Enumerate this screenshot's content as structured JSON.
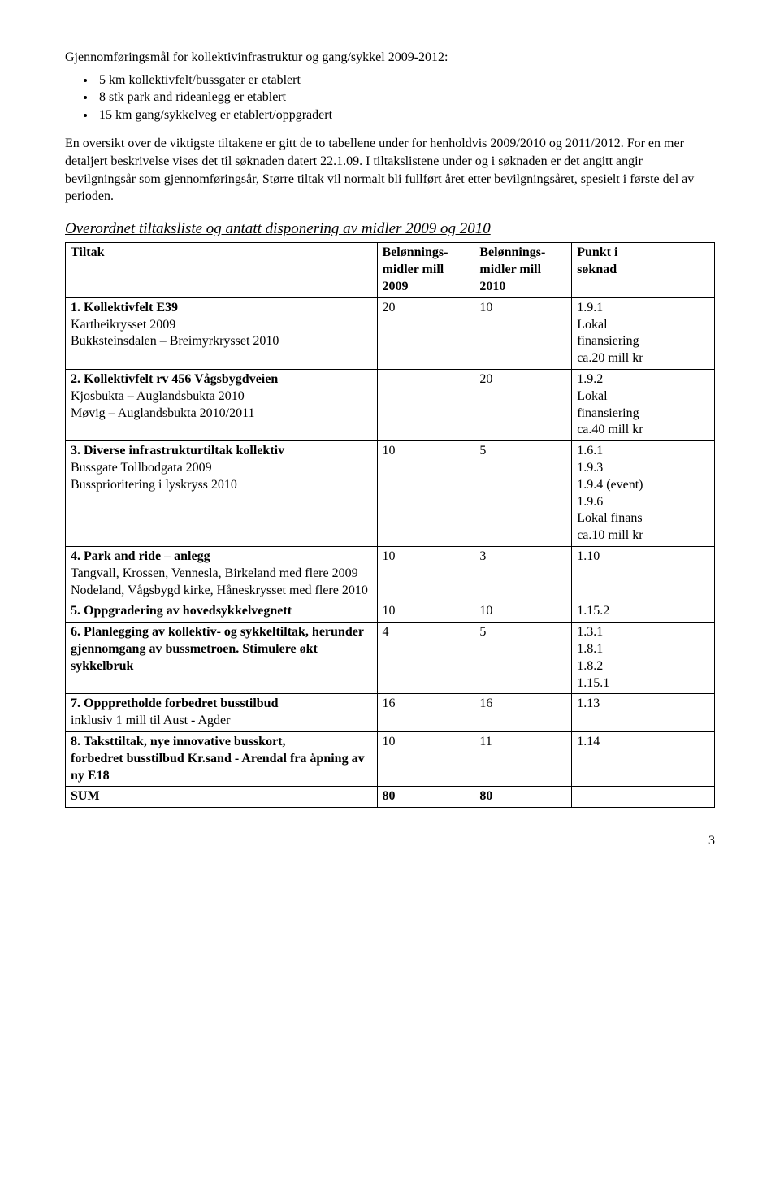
{
  "intro": {
    "line1": "Gjennomføringsmål for kollektivinfrastruktur og gang/sykkel 2009-2012:",
    "bullets": [
      "5 km kollektivfelt/bussgater er etablert",
      "8 stk park and rideanlegg er etablert",
      "15 km gang/sykkelveg er etablert/oppgradert"
    ],
    "para2": "En oversikt over de viktigste tiltakene er gitt de to tabellene under for henholdvis 2009/2010 og 2011/2012. For en mer detaljert beskrivelse vises det til søknaden datert 22.1.09. I tiltakslistene under og i søknaden er det angitt angir bevilgningsår som gjennomføringsår, Større tiltak vil normalt bli fullført året etter bevilgningsåret, spesielt i første del av perioden."
  },
  "tableHeading": "Overordnet tiltaksliste og antatt disponering av midler 2009 og 2010",
  "header": {
    "c1": "Tiltak",
    "c2a": "Belønnings-",
    "c2b": "midler mill",
    "c2c": "2009",
    "c3a": "Belønnings-",
    "c3b": "midler mill",
    "c3c": "2010",
    "c4a": "Punkt i",
    "c4b": "søknad"
  },
  "rows": [
    {
      "c1_bold": "1. Kollektivfelt E39",
      "c1_rest": [
        "Kartheikrysset 2009",
        "Bukksteinsdalen – Breimyrkrysset 2010"
      ],
      "c2": "20",
      "c3": "10",
      "c4": [
        "1.9.1",
        "Lokal",
        "finansiering",
        "ca.20 mill kr"
      ]
    },
    {
      "c1_bold": "2. Kollektivfelt rv 456 Vågsbygdveien",
      "c1_rest": [
        "Kjosbukta – Auglandsbukta 2010",
        "Møvig – Auglandsbukta 2010/2011"
      ],
      "c2": "",
      "c3": "20",
      "c4": [
        "1.9.2",
        "Lokal",
        "finansiering",
        "ca.40 mill kr"
      ]
    },
    {
      "c1_bold": "3. Diverse infrastrukturtiltak kollektiv",
      "c1_rest": [
        "Bussgate Tollbodgata 2009",
        "Bussprioritering i lyskryss 2010"
      ],
      "c2": "10",
      "c3": "5",
      "c4": [
        "1.6.1",
        "1.9.3",
        "1.9.4 (event)",
        "1.9.6",
        "Lokal finans",
        "ca.10 mill kr"
      ]
    },
    {
      "c1_bold": "4. Park and ride – anlegg",
      "c1_rest": [
        "Tangvall, Krossen, Vennesla, Birkeland med flere 2009",
        "Nodeland, Vågsbygd kirke, Håneskrysset med flere 2010"
      ],
      "c2": "10",
      "c3": "3",
      "c4": [
        "1.10"
      ]
    },
    {
      "c1_bold": "5. Oppgradering av hovedsykkelvegnett",
      "c1_rest": [],
      "c2": "10",
      "c3": "10",
      "c4": [
        "1.15.2"
      ]
    },
    {
      "c1_bold": "6. Planlegging av kollektiv- og sykkeltiltak, herunder gjennomgang av bussmetroen. Stimulere økt sykkelbruk",
      "c1_rest": [],
      "c2": "4",
      "c3": "5",
      "c4": [
        "1.3.1",
        "1.8.1",
        "1.8.2",
        "1.15.1"
      ]
    },
    {
      "c1_bold": "7. Opppretholde forbedret busstilbud",
      "c1_rest": [
        "inklusiv 1 mill til Aust - Agder"
      ],
      "c2": "16",
      "c3": "16",
      "c4": [
        "1.13"
      ]
    },
    {
      "c1_bold": "8. Taksttiltak, nye innovative busskort,",
      "c1_rest_plain": [
        "forbedret busstilbud Kr.sand - Arendal fra åpning av ny E18"
      ],
      "c2": "10",
      "c3": "11",
      "c4": [
        "1.14"
      ]
    }
  ],
  "sumRow": {
    "label": "SUM",
    "c2": "80",
    "c3": "80",
    "c4": ""
  },
  "pageNumber": "3"
}
